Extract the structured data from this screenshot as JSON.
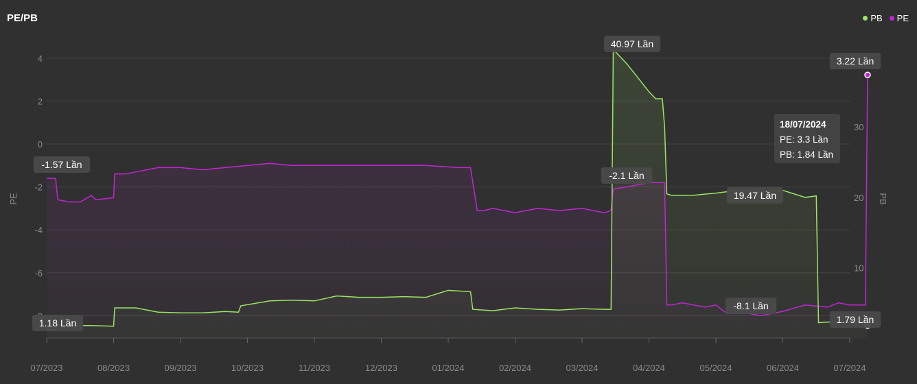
{
  "title": "PE/PB",
  "legend": [
    {
      "name": "PB",
      "color": "#9be564"
    },
    {
      "name": "PE",
      "color": "#c026d3"
    }
  ],
  "chart_data": {
    "type": "line",
    "ylabel_left": "PE",
    "ylabel_right": "PB",
    "yticks_left": [
      "4",
      "2",
      "0",
      "-2",
      "-4",
      "-6",
      "-8"
    ],
    "yticks_right": [
      "30",
      "20",
      "10"
    ],
    "xticks": [
      "07/2023",
      "08/2023",
      "09/2023",
      "10/2023",
      "11/2023",
      "12/2023",
      "01/2024",
      "02/2024",
      "03/2024",
      "04/2024",
      "05/2024",
      "06/2024",
      "07/2024"
    ],
    "series": [
      {
        "name": "PE",
        "axis": "left",
        "color": "#c026d3",
        "points": [
          [
            0.0,
            -1.6
          ],
          [
            0.4,
            -1.6
          ],
          [
            0.5,
            -2.6
          ],
          [
            1.0,
            -2.7
          ],
          [
            1.5,
            -2.7
          ],
          [
            2.0,
            -2.4
          ],
          [
            2.2,
            -2.6
          ],
          [
            3.0,
            -2.5
          ],
          [
            3.05,
            -1.4
          ],
          [
            3.5,
            -1.4
          ],
          [
            4.0,
            -1.3
          ],
          [
            5.0,
            -1.1
          ],
          [
            6.0,
            -1.1
          ],
          [
            7.0,
            -1.2
          ],
          [
            8.0,
            -1.1
          ],
          [
            10.0,
            -0.9
          ],
          [
            11.0,
            -1.0
          ],
          [
            13.0,
            -1.0
          ],
          [
            15.0,
            -1.0
          ],
          [
            17.0,
            -1.0
          ],
          [
            18.5,
            -1.1
          ],
          [
            19.0,
            -1.1
          ],
          [
            19.3,
            -3.1
          ],
          [
            19.6,
            -3.1
          ],
          [
            20.0,
            -3.0
          ],
          [
            21.0,
            -3.2
          ],
          [
            22.0,
            -3.0
          ],
          [
            23.0,
            -3.1
          ],
          [
            24.0,
            -3.0
          ],
          [
            25.0,
            -3.2
          ],
          [
            25.3,
            -3.1
          ],
          [
            25.4,
            -2.1
          ],
          [
            26.0,
            -2.0
          ],
          [
            27.0,
            -1.8
          ],
          [
            27.7,
            -1.8
          ],
          [
            27.8,
            -7.5
          ],
          [
            28.0,
            -7.5
          ],
          [
            28.5,
            -7.4
          ],
          [
            29.5,
            -7.6
          ],
          [
            30.0,
            -7.5
          ],
          [
            30.5,
            -7.9
          ],
          [
            31.0,
            -7.8
          ],
          [
            32.0,
            -8.0
          ],
          [
            33.0,
            -7.8
          ],
          [
            34.0,
            -7.5
          ],
          [
            35.0,
            -7.6
          ],
          [
            35.5,
            -7.4
          ],
          [
            36.0,
            -7.5
          ],
          [
            36.7,
            -7.5
          ],
          [
            36.8,
            3.22
          ]
        ]
      },
      {
        "name": "PB",
        "axis": "right",
        "color": "#9be564",
        "points": [
          [
            0.0,
            1.18
          ],
          [
            0.4,
            1.18
          ],
          [
            0.5,
            1.9
          ],
          [
            1.0,
            1.8
          ],
          [
            2.0,
            1.8
          ],
          [
            3.0,
            1.7
          ],
          [
            3.05,
            4.3
          ],
          [
            4.0,
            4.3
          ],
          [
            5.0,
            3.7
          ],
          [
            6.0,
            3.6
          ],
          [
            7.0,
            3.6
          ],
          [
            8.0,
            3.8
          ],
          [
            8.6,
            3.7
          ],
          [
            8.7,
            4.6
          ],
          [
            10.0,
            5.3
          ],
          [
            11.0,
            5.4
          ],
          [
            12.0,
            5.3
          ],
          [
            13.0,
            6.0
          ],
          [
            14.0,
            5.8
          ],
          [
            15.0,
            5.8
          ],
          [
            16.0,
            5.9
          ],
          [
            17.0,
            5.8
          ],
          [
            18.0,
            6.8
          ],
          [
            19.0,
            6.6
          ],
          [
            19.1,
            4.1
          ],
          [
            20.0,
            3.9
          ],
          [
            21.0,
            4.3
          ],
          [
            22.0,
            4.1
          ],
          [
            23.0,
            4.0
          ],
          [
            24.0,
            4.2
          ],
          [
            25.0,
            4.1
          ],
          [
            25.3,
            4.1
          ],
          [
            25.4,
            41.0
          ],
          [
            26.0,
            39.0
          ],
          [
            26.5,
            37.0
          ],
          [
            27.0,
            35.0
          ],
          [
            27.3,
            34.0
          ],
          [
            27.6,
            34.0
          ],
          [
            27.7,
            30.0
          ],
          [
            27.8,
            20.5
          ],
          [
            28.0,
            20.3
          ],
          [
            29.0,
            20.3
          ],
          [
            30.0,
            20.6
          ],
          [
            31.0,
            21.0
          ],
          [
            32.0,
            20.8
          ],
          [
            33.0,
            21.0
          ],
          [
            34.0,
            20.0
          ],
          [
            34.5,
            20.2
          ],
          [
            34.6,
            2.2
          ],
          [
            35.0,
            2.3
          ],
          [
            36.0,
            2.2
          ],
          [
            36.7,
            2.2
          ],
          [
            36.8,
            1.79
          ]
        ]
      }
    ],
    "data_labels": [
      {
        "text": "-1.57 Lần",
        "series": "PE"
      },
      {
        "text": "1.18 Lần",
        "series": "PB"
      },
      {
        "text": "40.97 Lần",
        "series": "PB"
      },
      {
        "text": "-2.1 Lần",
        "series": "PE"
      },
      {
        "text": "19.47 Lần",
        "series": "PB"
      },
      {
        "text": "-8.1 Lần",
        "series": "PE"
      },
      {
        "text": "3.22 Lần",
        "series": "PE"
      },
      {
        "text": "1.79 Lần",
        "series": "PB"
      }
    ],
    "tooltip": {
      "date": "18/07/2024",
      "lines": [
        "PE: 3.3 Lần",
        "PB: 1.84 Lần"
      ]
    }
  }
}
